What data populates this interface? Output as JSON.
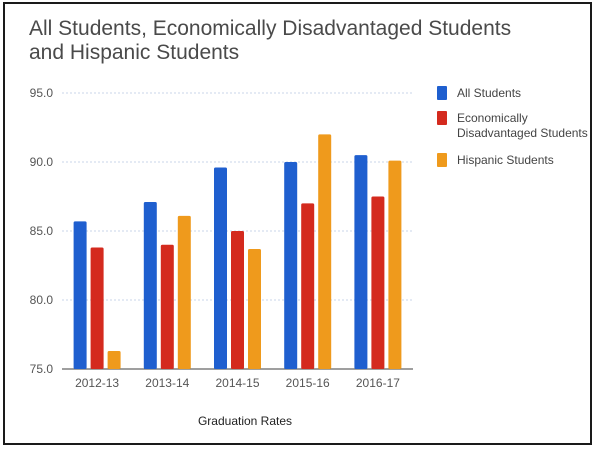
{
  "chart_data": {
    "type": "bar",
    "title": "All Students, Economically Disadvantaged Students and Hispanic Students",
    "xlabel": "Graduation Rates",
    "ylabel": "",
    "ylim": [
      75,
      95
    ],
    "yticks": [
      "95.0",
      "90.0",
      "85.0",
      "80.0",
      "75.0"
    ],
    "categories": [
      "2012-13",
      "2013-14",
      "2014-15",
      "2015-16",
      "2016-17"
    ],
    "series": [
      {
        "name": "All Students",
        "color": "#1f5fcf",
        "values": [
          85.7,
          87.1,
          89.6,
          90.0,
          90.5
        ]
      },
      {
        "name": "Economically Disadvantaged Students",
        "name_lines": [
          "Economically",
          "Disadvantaged Students"
        ],
        "color": "#d42a1e",
        "values": [
          83.8,
          84.0,
          85.0,
          87.0,
          87.5
        ]
      },
      {
        "name": "Hispanic Students",
        "color": "#ef9a1c",
        "values": [
          76.3,
          86.1,
          83.7,
          92.0,
          90.1
        ]
      }
    ],
    "grid": true,
    "legend_position": "right"
  }
}
